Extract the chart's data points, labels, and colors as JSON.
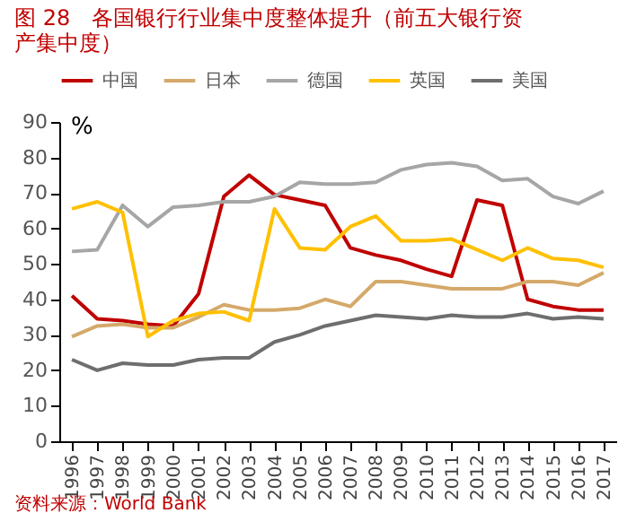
{
  "chart_data": {
    "type": "line",
    "title": [
      "图 28　各国银行行业集中度整体提升（前五大银行资",
      "产集中度）"
    ],
    "ylabel": "%",
    "categories": [
      "1996",
      "1997",
      "1998",
      "1999",
      "2000",
      "2001",
      "2002",
      "2003",
      "2004",
      "2005",
      "2006",
      "2007",
      "2008",
      "2009",
      "2010",
      "2011",
      "2012",
      "2013",
      "2014",
      "2015",
      "2016",
      "2017"
    ],
    "series": [
      {
        "name": "中国",
        "color": "#c00000",
        "values": [
          41,
          34.5,
          34,
          33,
          32.5,
          41.5,
          69,
          75,
          69.5,
          68,
          66.5,
          54.5,
          52.5,
          51,
          48.5,
          46.5,
          68,
          66.5,
          40,
          38,
          37,
          37
        ]
      },
      {
        "name": "日本",
        "color": "#d4a96a",
        "values": [
          29.5,
          32.5,
          33,
          32,
          32,
          35,
          38.5,
          37,
          37,
          37.5,
          40,
          38,
          45,
          45,
          44,
          43,
          43,
          43,
          45,
          45,
          44,
          47.5
        ]
      },
      {
        "name": "德国",
        "color": "#a6a6a6",
        "values": [
          53.5,
          54,
          66.5,
          60.5,
          66,
          66.5,
          67.5,
          67.5,
          69,
          73,
          72.5,
          72.5,
          73,
          76.5,
          78,
          78.5,
          77.5,
          73.5,
          74,
          69,
          67,
          70.5
        ]
      },
      {
        "name": "英国",
        "color": "#ffc000",
        "values": [
          65.5,
          67.5,
          64.5,
          29.5,
          34,
          36,
          36.5,
          34,
          65.5,
          54.5,
          54,
          60.5,
          63.5,
          56.5,
          56.5,
          57,
          54,
          51,
          54.5,
          51.5,
          51,
          49
        ]
      },
      {
        "name": "美国",
        "color": "#6e6e6e",
        "values": [
          23,
          20,
          22,
          21.5,
          21.5,
          23,
          23.5,
          23.5,
          28,
          30,
          32.5,
          34,
          35.5,
          35,
          34.5,
          35.5,
          35,
          35,
          36,
          34.5,
          35,
          34.5
        ]
      }
    ],
    "ylim": [
      0,
      90
    ],
    "yticks": [
      0,
      10,
      20,
      30,
      40,
      50,
      60,
      70,
      80,
      90
    ],
    "grid": false,
    "legend": "top",
    "marker": "none",
    "line_style": "solid",
    "annotations": [
      "资料来源：World Bank"
    ]
  }
}
